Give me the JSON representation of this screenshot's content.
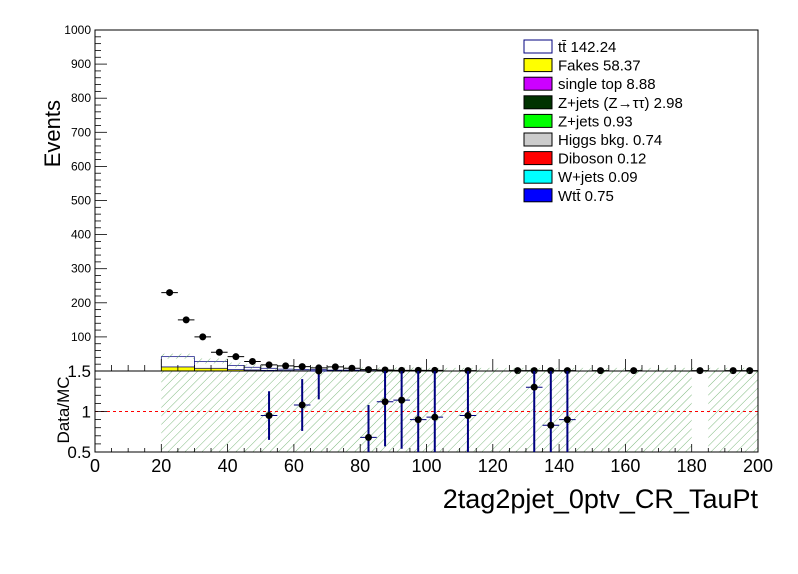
{
  "chart_data": [
    {
      "type": "bar",
      "ylabel": "Events",
      "xlim": [
        0,
        200
      ],
      "ylim": [
        0,
        1000
      ],
      "y_ticks": [
        100,
        200,
        300,
        400,
        500,
        600,
        700,
        800,
        900,
        1000
      ],
      "legend_position": "top-right",
      "legend": [
        {
          "label": "tt̄ 142.24",
          "color": "#ffffff",
          "edge": "#00007f"
        },
        {
          "label": "Fakes 58.37",
          "color": "#ffff00",
          "edge": "#000000"
        },
        {
          "label": "single top 8.88",
          "color": "#cc00ff",
          "edge": "#000000"
        },
        {
          "label": "Z+jets (Z→ττ) 2.98",
          "color": "#003300",
          "edge": "#000000"
        },
        {
          "label": "Z+jets 0.93",
          "color": "#00ff00",
          "edge": "#000000"
        },
        {
          "label": "Higgs bkg. 0.74",
          "color": "#cccccc",
          "edge": "#000000"
        },
        {
          "label": "Diboson 0.12",
          "color": "#ff0000",
          "edge": "#000000"
        },
        {
          "label": "W+jets 0.09",
          "color": "#00ffff",
          "edge": "#000000"
        },
        {
          "label": "Wtt̄ 0.75",
          "color": "#0000ff",
          "edge": "#000000"
        }
      ],
      "mc_bins": {
        "edges": [
          20,
          30,
          40,
          45,
          50,
          55,
          60,
          70,
          80,
          100,
          200
        ],
        "fakes": [
          12,
          8,
          4,
          3,
          2,
          1.5,
          1,
          0.6,
          0.3,
          0.1
        ],
        "ttbar": [
          30,
          20,
          12,
          8,
          6,
          4,
          3,
          2,
          1,
          0.3
        ]
      },
      "data_points": {
        "x": [
          22.5,
          27.5,
          32.5,
          37.5,
          42.5,
          47.5,
          52.5,
          57.5,
          62.5,
          67.5,
          72.5,
          77.5,
          82.5,
          87.5,
          92.5,
          97.5,
          102.5,
          112.5,
          127.5,
          132.5,
          137.5,
          142.5,
          152.5,
          162.5,
          182.5,
          192.5,
          197.5
        ],
        "y": [
          230,
          150,
          100,
          55,
          42,
          28,
          18,
          15,
          13,
          9,
          12,
          8,
          4,
          3,
          2,
          2,
          2,
          1,
          1,
          1,
          1,
          1,
          1,
          1,
          1,
          1,
          1
        ],
        "xerr": 2.5
      }
    },
    {
      "type": "scatter",
      "ylabel": "Data/MC",
      "xlabel": "2tag2pjet_0ptv_CR_TauPt",
      "xlim": [
        0,
        200
      ],
      "ylim": [
        0.5,
        1.5
      ],
      "x_ticks": [
        0,
        20,
        40,
        60,
        80,
        100,
        120,
        140,
        160,
        180,
        200
      ],
      "y_ticks": [
        0.5,
        1,
        1.5
      ],
      "reference_line": 1,
      "points": [
        {
          "x": 52.5,
          "y": 0.95,
          "err": 0.3
        },
        {
          "x": 62.5,
          "y": 1.08,
          "err": 0.32
        },
        {
          "x": 67.5,
          "y": 1.5,
          "err": 0.35
        },
        {
          "x": 82.5,
          "y": 0.68,
          "err": 0.4
        },
        {
          "x": 87.5,
          "y": 1.12,
          "err": 0.55
        },
        {
          "x": 92.5,
          "y": 1.14,
          "err": 0.6
        },
        {
          "x": 97.5,
          "y": 0.9,
          "err": 0.6
        },
        {
          "x": 102.5,
          "y": 0.93,
          "err": 0.6
        },
        {
          "x": 112.5,
          "y": 0.95,
          "err": 0.7
        },
        {
          "x": 132.5,
          "y": 1.3,
          "err": 0.8
        },
        {
          "x": 137.5,
          "y": 0.83,
          "err": 0.8
        },
        {
          "x": 142.5,
          "y": 0.9,
          "err": 0.8
        }
      ],
      "uncertainty_band": {
        "x_start": 20,
        "x_end": 200,
        "gap": [
          180,
          185
        ]
      }
    }
  ]
}
